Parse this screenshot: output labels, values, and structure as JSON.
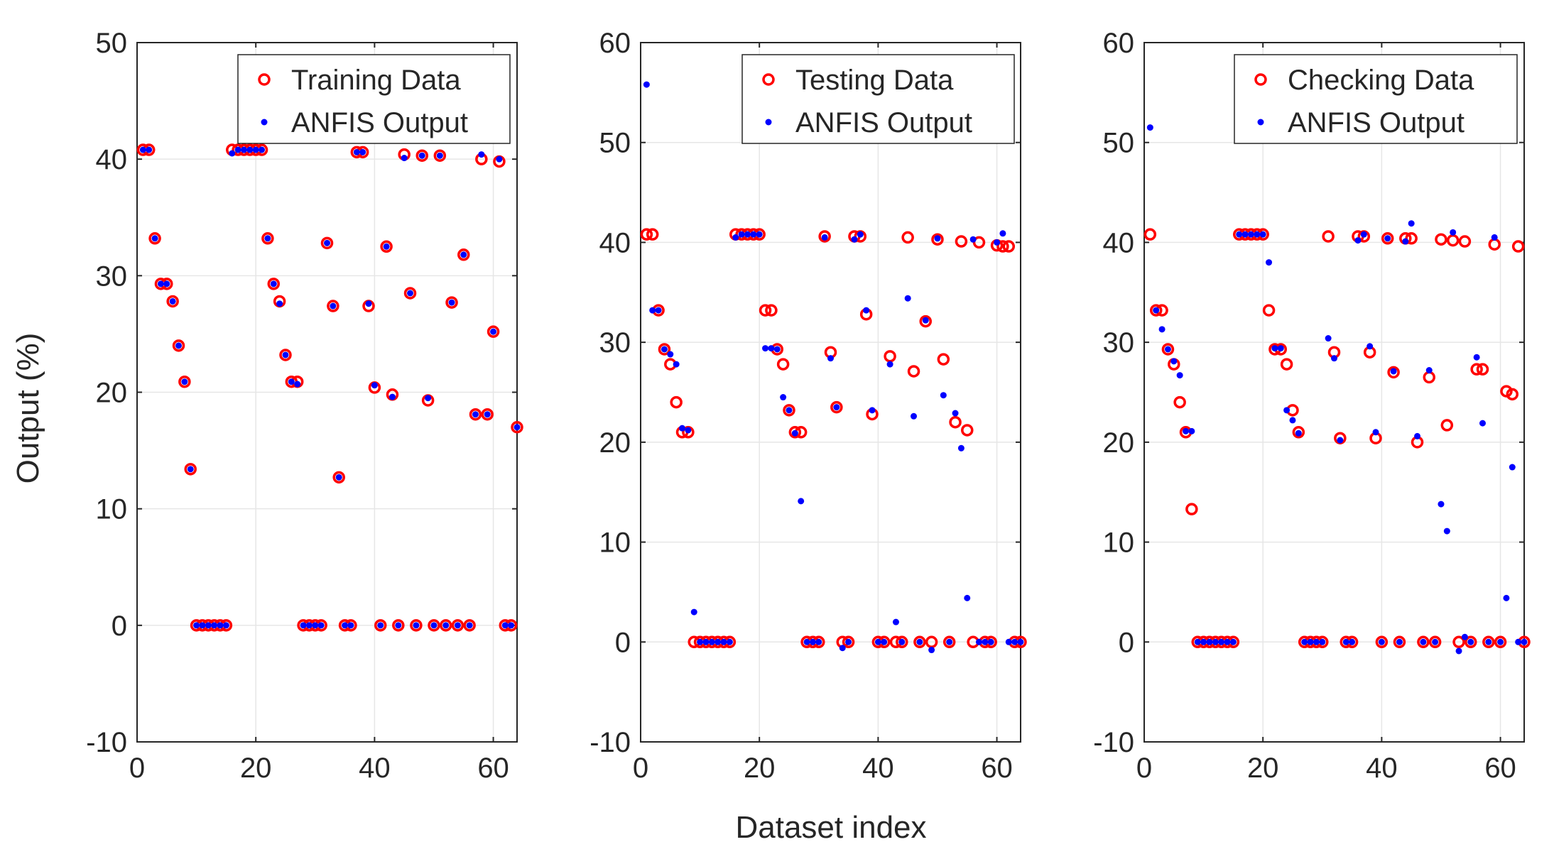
{
  "figure": {
    "ylabel": "Output (%)",
    "xlabel": "Dataset index"
  },
  "colors": {
    "data_marker": "#ff0000",
    "anfis_marker": "#0000ff",
    "grid": "#e6e6e6",
    "axes": "#262626"
  },
  "chart_data": [
    {
      "type": "scatter",
      "title": "",
      "xlim": [
        0,
        64
      ],
      "ylim": [
        -10,
        50
      ],
      "xticks": [
        "0",
        "20",
        "40",
        "60"
      ],
      "yticks": [
        "-10",
        "0",
        "10",
        "20",
        "30",
        "40",
        "50"
      ],
      "legend": {
        "position": "top-right",
        "entries": [
          "Training Data",
          "ANFIS Output"
        ]
      },
      "series": [
        {
          "name": "Training Data",
          "marker": "circle-open",
          "x": [
            1,
            2,
            3,
            4,
            5,
            6,
            7,
            8,
            9,
            10,
            11,
            12,
            13,
            14,
            15,
            16,
            17,
            18,
            19,
            20,
            21,
            22,
            23,
            24,
            25,
            26,
            27,
            28,
            29,
            30,
            31,
            32,
            33,
            34,
            35,
            36,
            37,
            38,
            39,
            40,
            41,
            42,
            43,
            44,
            45,
            46,
            47,
            48,
            49,
            50,
            51,
            52,
            53,
            54,
            55,
            56,
            57,
            58,
            59,
            60,
            61,
            62,
            63,
            64
          ],
          "y": [
            40.8,
            40.8,
            33.2,
            29.3,
            29.3,
            27.8,
            24.0,
            20.9,
            13.4,
            0,
            0,
            0,
            0,
            0,
            0,
            40.8,
            40.8,
            40.8,
            40.8,
            40.8,
            40.8,
            33.2,
            29.3,
            27.8,
            23.2,
            20.9,
            20.9,
            0,
            0,
            0,
            0,
            32.8,
            27.4,
            12.7,
            0,
            0,
            40.6,
            40.6,
            27.4,
            20.4,
            0,
            32.5,
            19.8,
            0,
            40.4,
            28.5,
            0,
            40.3,
            19.3,
            0,
            40.3,
            0,
            27.7,
            0,
            31.8,
            0,
            18.1,
            40.0,
            18.1,
            25.2,
            39.8,
            0,
            0,
            17.0
          ]
        },
        {
          "name": "ANFIS Output",
          "marker": "dot",
          "x": [
            1,
            2,
            3,
            4,
            5,
            6,
            7,
            8,
            9,
            10,
            11,
            12,
            13,
            14,
            15,
            16,
            17,
            18,
            19,
            20,
            21,
            22,
            23,
            24,
            25,
            26,
            27,
            28,
            29,
            30,
            31,
            32,
            33,
            34,
            35,
            36,
            37,
            38,
            39,
            40,
            41,
            42,
            43,
            44,
            45,
            46,
            47,
            48,
            49,
            50,
            51,
            52,
            53,
            54,
            55,
            56,
            57,
            58,
            59,
            60,
            61,
            62,
            63,
            64
          ],
          "y": [
            40.8,
            40.8,
            33.2,
            29.3,
            29.3,
            27.8,
            24.0,
            20.9,
            13.4,
            0,
            0,
            0,
            0,
            0,
            0,
            40.5,
            40.8,
            40.8,
            40.8,
            40.8,
            40.8,
            33.2,
            29.3,
            27.6,
            23.2,
            20.9,
            20.7,
            0,
            0,
            0,
            0,
            32.8,
            27.4,
            12.7,
            0,
            0,
            40.6,
            40.6,
            27.6,
            20.6,
            0,
            32.5,
            19.6,
            0,
            40.1,
            28.5,
            0,
            40.3,
            19.5,
            0,
            40.3,
            0,
            27.7,
            0,
            31.8,
            0,
            18.1,
            40.4,
            18.1,
            25.2,
            40.0,
            0,
            0,
            17.0
          ]
        }
      ]
    },
    {
      "type": "scatter",
      "title": "",
      "xlim": [
        0,
        64
      ],
      "ylim": [
        -10,
        60
      ],
      "xticks": [
        "0",
        "20",
        "40",
        "60"
      ],
      "yticks": [
        "-10",
        "0",
        "10",
        "20",
        "30",
        "40",
        "50",
        "60"
      ],
      "legend": {
        "position": "top-right",
        "entries": [
          "Testing Data",
          "ANFIS Output"
        ]
      },
      "series": [
        {
          "name": "Testing Data",
          "marker": "circle-open",
          "x": [
            1,
            2,
            3,
            4,
            5,
            6,
            7,
            8,
            9,
            10,
            11,
            12,
            13,
            14,
            15,
            16,
            17,
            18,
            19,
            20,
            21,
            22,
            23,
            24,
            25,
            26,
            27,
            28,
            29,
            30,
            31,
            32,
            33,
            34,
            35,
            36,
            37,
            38,
            39,
            40,
            41,
            42,
            43,
            44,
            45,
            46,
            47,
            48,
            49,
            50,
            51,
            52,
            53,
            54,
            55,
            56,
            57,
            58,
            59,
            60,
            61,
            62,
            63,
            64
          ],
          "y": [
            40.8,
            40.8,
            33.2,
            29.3,
            27.8,
            24.0,
            21.0,
            21.0,
            0,
            0,
            0,
            0,
            0,
            0,
            0,
            40.8,
            40.8,
            40.8,
            40.8,
            40.8,
            33.2,
            33.2,
            29.3,
            27.8,
            23.2,
            21.0,
            21.0,
            0,
            0,
            0,
            40.6,
            29.0,
            23.5,
            0,
            0,
            40.6,
            40.6,
            32.8,
            22.8,
            0,
            0,
            28.6,
            0,
            0,
            40.5,
            27.1,
            0,
            32.1,
            0,
            40.3,
            28.3,
            0,
            22.0,
            40.1,
            21.2,
            0,
            40.0,
            0,
            0,
            39.7,
            39.6,
            39.6,
            0,
            0
          ]
        },
        {
          "name": "ANFIS Output",
          "marker": "dot",
          "x": [
            1,
            2,
            3,
            4,
            5,
            6,
            7,
            8,
            9,
            10,
            11,
            12,
            13,
            14,
            15,
            16,
            17,
            18,
            19,
            20,
            21,
            22,
            23,
            24,
            25,
            26,
            27,
            28,
            29,
            30,
            31,
            32,
            33,
            34,
            35,
            36,
            37,
            38,
            39,
            40,
            41,
            42,
            43,
            44,
            45,
            46,
            47,
            48,
            49,
            50,
            51,
            52,
            53,
            54,
            55,
            56,
            57,
            58,
            59,
            60,
            61,
            62,
            63,
            64
          ],
          "y": [
            55.8,
            33.2,
            33.2,
            29.3,
            28.8,
            27.8,
            21.4,
            21.2,
            3.0,
            0,
            0,
            0,
            0,
            0,
            0,
            40.5,
            40.8,
            40.8,
            40.8,
            40.8,
            29.4,
            29.4,
            29.3,
            24.5,
            23.2,
            20.9,
            14.1,
            0,
            0,
            0,
            40.5,
            28.4,
            23.5,
            -0.6,
            0,
            40.3,
            40.8,
            33.2,
            23.2,
            0,
            0,
            27.8,
            2.0,
            0,
            34.4,
            22.6,
            0,
            32.2,
            -0.8,
            40.4,
            24.7,
            0,
            22.9,
            19.4,
            4.4,
            40.3,
            0,
            0,
            0,
            40.0,
            40.9,
            0,
            0,
            0
          ]
        }
      ]
    },
    {
      "type": "scatter",
      "title": "",
      "xlim": [
        0,
        64
      ],
      "ylim": [
        -10,
        60
      ],
      "xticks": [
        "0",
        "20",
        "40",
        "60"
      ],
      "yticks": [
        "-10",
        "0",
        "10",
        "20",
        "30",
        "40",
        "50",
        "60"
      ],
      "legend": {
        "position": "top-right",
        "entries": [
          "Checking Data",
          "ANFIS Output"
        ]
      },
      "series": [
        {
          "name": "Checking Data",
          "marker": "circle-open",
          "x": [
            1,
            2,
            3,
            4,
            5,
            6,
            7,
            8,
            9,
            10,
            11,
            12,
            13,
            14,
            15,
            16,
            17,
            18,
            19,
            20,
            21,
            22,
            23,
            24,
            25,
            26,
            27,
            28,
            29,
            30,
            31,
            32,
            33,
            34,
            35,
            36,
            37,
            38,
            39,
            40,
            41,
            42,
            43,
            44,
            45,
            46,
            47,
            48,
            49,
            50,
            51,
            52,
            53,
            54,
            55,
            56,
            57,
            58,
            59,
            60,
            61,
            62,
            63,
            64
          ],
          "y": [
            40.8,
            33.2,
            33.2,
            29.3,
            27.8,
            24.0,
            21.0,
            13.3,
            0,
            0,
            0,
            0,
            0,
            0,
            0,
            40.8,
            40.8,
            40.8,
            40.8,
            40.8,
            33.2,
            29.3,
            29.3,
            27.8,
            23.2,
            21.0,
            0,
            0,
            0,
            0,
            40.6,
            29.0,
            20.4,
            0,
            0,
            40.6,
            40.6,
            29.0,
            20.4,
            0,
            40.4,
            27.0,
            0,
            40.4,
            40.4,
            20.0,
            0,
            26.5,
            0,
            40.3,
            21.7,
            40.2,
            0,
            40.1,
            0,
            27.3,
            27.3,
            0,
            39.8,
            0,
            25.1,
            24.8,
            39.6,
            0
          ]
        },
        {
          "name": "ANFIS Output",
          "marker": "dot",
          "x": [
            1,
            2,
            3,
            4,
            5,
            6,
            7,
            8,
            9,
            10,
            11,
            12,
            13,
            14,
            15,
            16,
            17,
            18,
            19,
            20,
            21,
            22,
            23,
            24,
            25,
            26,
            27,
            28,
            29,
            30,
            31,
            32,
            33,
            34,
            35,
            36,
            37,
            38,
            39,
            40,
            41,
            42,
            43,
            44,
            45,
            46,
            47,
            48,
            49,
            50,
            51,
            52,
            53,
            54,
            55,
            56,
            57,
            58,
            59,
            60,
            61,
            62,
            63,
            64
          ],
          "y": [
            51.5,
            33.2,
            31.3,
            29.3,
            28.1,
            26.7,
            21.1,
            21.1,
            0,
            0,
            0,
            0,
            0,
            0,
            0,
            40.8,
            40.8,
            40.8,
            40.8,
            40.8,
            38.0,
            29.4,
            29.4,
            23.2,
            22.2,
            20.9,
            0,
            0,
            0,
            0,
            30.4,
            28.4,
            20.2,
            0,
            0,
            40.2,
            40.8,
            29.6,
            21.0,
            0,
            40.4,
            27.1,
            0,
            40.1,
            41.9,
            20.6,
            0,
            27.2,
            0,
            13.8,
            11.1,
            41.0,
            -0.9,
            0.5,
            0,
            28.5,
            21.9,
            0,
            40.5,
            0,
            4.4,
            17.5,
            0,
            0
          ]
        }
      ]
    }
  ]
}
